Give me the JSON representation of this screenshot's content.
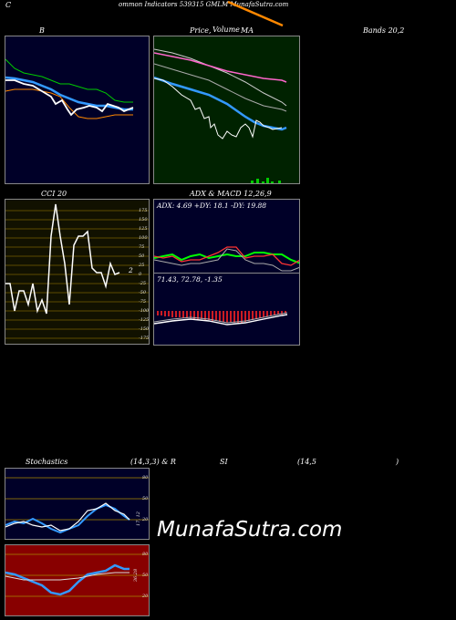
{
  "header": {
    "title_prefix": "C",
    "title": "ommon  Indicators 539315 GMLM MunafaSutra.com"
  },
  "labels": {
    "b": "B",
    "price_ma": "Price,",
    "price_ma_overlap": "Volume",
    "price_ma_suffix": "MA",
    "bands": "Bands 20,2",
    "cci": "CCI 20",
    "adx_macd": "ADX  & MACD 12,26,9",
    "stoch": "Stochastics",
    "stoch_params": "(14,3,3) & R",
    "si": "SI",
    "rsi_params": "(14,5",
    "rsi_close": ")"
  },
  "cci": {
    "ticks": [
      "175",
      "150",
      "125",
      "100",
      "75",
      "50",
      "25",
      "0",
      "-25",
      "-50",
      "-75",
      "-100",
      "-125",
      "-150",
      "-175"
    ],
    "last_value": "2"
  },
  "adx": {
    "readout": "ADX: 4.69  +DY: 18.1  -DY: 19.88"
  },
  "macd": {
    "readout": "71.43,  72.78,  -1.35"
  },
  "stoch": {
    "ticks": [
      "80",
      "50",
      "20"
    ],
    "last_value": "17, 12"
  },
  "rsi": {
    "ticks": [
      "80",
      "50",
      "20"
    ],
    "last_value": "36.28"
  },
  "watermark": "MunafaSutra.com",
  "colors": {
    "blue_panel": "#000028",
    "green_panel": "#002200",
    "cci_panel": "#1a1a00",
    "rsi_panel": "#880000",
    "accent_orange": "#ff8800"
  }
}
